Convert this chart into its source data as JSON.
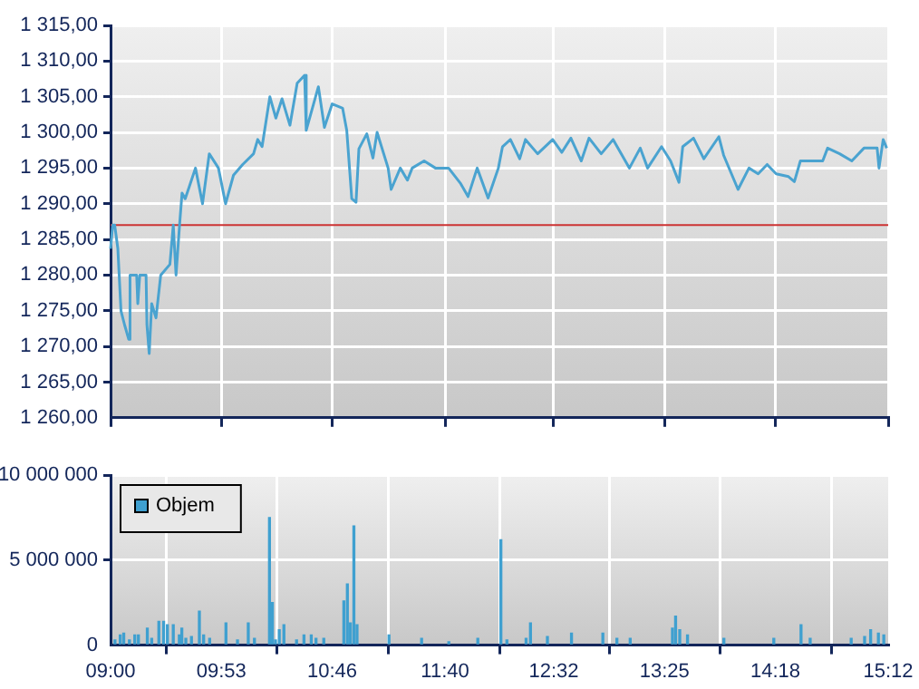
{
  "chart_data": [
    {
      "type": "line",
      "color": "#4aa3d0",
      "marker": "none",
      "grid": true,
      "tick_labels": "y",
      "x": [
        9.0,
        9.017,
        9.033,
        9.058,
        9.083,
        9.112,
        9.145,
        9.155,
        9.208,
        9.217,
        9.233,
        9.283,
        9.29,
        9.308,
        9.328,
        9.362,
        9.4,
        9.473,
        9.5,
        9.522,
        9.55,
        9.57,
        9.595,
        9.628,
        9.677,
        9.733,
        9.787,
        9.86,
        9.917,
        9.98,
        10.053,
        10.14,
        10.173,
        10.208,
        10.27,
        10.318,
        10.367,
        10.43,
        10.488,
        10.547,
        10.56,
        10.657,
        10.705,
        10.767,
        10.85,
        10.883,
        10.923,
        10.957,
        10.98,
        11.043,
        11.092,
        11.125,
        11.213,
        11.237,
        11.31,
        11.367,
        11.405,
        11.5,
        11.59,
        11.695,
        11.792,
        11.85,
        11.923,
        12.01,
        12.092,
        12.125,
        12.188,
        12.262,
        12.308,
        12.405,
        12.525,
        12.598,
        12.67,
        12.753,
        12.815,
        12.912,
        13.007,
        13.137,
        13.223,
        13.282,
        13.393,
        13.465,
        13.532,
        13.562,
        13.648,
        13.73,
        13.85,
        13.888,
        14.003,
        14.09,
        14.163,
        14.235,
        14.307,
        14.405,
        14.452,
        14.5,
        14.678,
        14.717,
        14.813,
        14.91,
        15.007,
        15.112,
        15.127,
        15.16,
        15.188
      ],
      "values": [
        1283.7,
        1287,
        1287,
        1283.7,
        1275,
        1273,
        1271,
        1280,
        1280,
        1276,
        1280,
        1280,
        1273,
        1269,
        1276,
        1274,
        1280,
        1281.5,
        1287,
        1280,
        1287,
        1291.5,
        1290.7,
        1292.4,
        1295,
        1290,
        1297,
        1295,
        1290,
        1294,
        1295.5,
        1297,
        1299,
        1298,
        1305,
        1302,
        1304.7,
        1301,
        1306.9,
        1308,
        1300.3,
        1306.4,
        1300.7,
        1304,
        1303.4,
        1300.3,
        1290.7,
        1290.2,
        1297.7,
        1299.8,
        1296.4,
        1300,
        1295,
        1292,
        1295,
        1293.3,
        1295,
        1296,
        1295,
        1295,
        1292.8,
        1291,
        1295,
        1290.8,
        1295,
        1298,
        1299,
        1296.3,
        1299,
        1297,
        1299,
        1297.2,
        1299.2,
        1296,
        1299.2,
        1297,
        1299,
        1295,
        1297.8,
        1295,
        1298,
        1296,
        1293,
        1298,
        1299.2,
        1296.3,
        1299.4,
        1296.8,
        1292,
        1295,
        1294.2,
        1295.5,
        1294.2,
        1293.8,
        1293.1,
        1296,
        1296,
        1297.8,
        1297,
        1296,
        1297.8,
        1297.8,
        1295,
        1299,
        1297.8
      ],
      "xlim": [
        9,
        15.2
      ],
      "xticks": [
        {
          "value": 9,
          "label": null
        },
        {
          "value": 9.8833,
          "label": null
        },
        {
          "value": 10.7667,
          "label": null
        },
        {
          "value": 11.6667,
          "label": null
        },
        {
          "value": 12.5333,
          "label": null
        },
        {
          "value": 13.4167,
          "label": null
        },
        {
          "value": 14.3,
          "label": null
        },
        {
          "value": 15.2,
          "label": null
        }
      ],
      "ylim": [
        1260,
        1315
      ],
      "yticks": [
        {
          "value": 1260,
          "label": "1 260,00"
        },
        {
          "value": 1265,
          "label": "1 265,00"
        },
        {
          "value": 1270,
          "label": "1 270,00"
        },
        {
          "value": 1275,
          "label": "1 275,00"
        },
        {
          "value": 1280,
          "label": "1 280,00"
        },
        {
          "value": 1285,
          "label": "1 285,00"
        },
        {
          "value": 1290,
          "label": "1 290,00"
        },
        {
          "value": 1295,
          "label": "1 295,00"
        },
        {
          "value": 1300,
          "label": "1 300,00"
        },
        {
          "value": 1305,
          "label": "1 305,00"
        },
        {
          "value": 1310,
          "label": "1 310,00"
        },
        {
          "value": 1315,
          "label": "1 315,00"
        }
      ],
      "ref_lines": [
        {
          "axis": "y",
          "value": 1287,
          "color": "#cc3333"
        }
      ]
    },
    {
      "type": "bar",
      "grid": true,
      "legend": "top left",
      "series": [
        {
          "name": "Objem",
          "color": "#3fa0d0",
          "x": [
            9.035,
            9.077,
            9.105,
            9.15,
            9.193,
            9.222,
            9.293,
            9.328,
            9.385,
            9.423,
            9.453,
            9.5,
            9.548,
            9.568,
            9.6,
            9.645,
            9.708,
            9.742,
            9.79,
            9.92,
            10.012,
            10.098,
            10.147,
            10.267,
            10.29,
            10.315,
            10.345,
            10.382,
            10.483,
            10.542,
            10.6,
            10.638,
            10.7,
            10.86,
            10.888,
            10.912,
            10.94,
            10.965,
            11.22,
            11.48,
            11.697,
            11.928,
            12.112,
            12.16,
            12.313,
            12.348,
            12.483,
            12.675,
            12.925,
            13.037,
            13.143,
            13.48,
            13.505,
            13.538,
            13.6,
            13.89,
            14.288,
            14.505,
            14.578,
            14.905,
            15.012,
            15.06,
            15.122,
            15.165
          ],
          "values": [
            300000,
            600000,
            700000,
            300000,
            600000,
            600000,
            1000000,
            400000,
            1400000,
            1400000,
            1200000,
            1200000,
            600000,
            1000000,
            400000,
            500000,
            2000000,
            600000,
            400000,
            1300000,
            300000,
            1300000,
            400000,
            7500000,
            2500000,
            300000,
            900000,
            1200000,
            300000,
            600000,
            600000,
            400000,
            400000,
            2600000,
            3600000,
            1300000,
            7000000,
            1200000,
            600000,
            400000,
            200000,
            400000,
            6200000,
            300000,
            400000,
            1300000,
            500000,
            700000,
            700000,
            400000,
            400000,
            1000000,
            1700000,
            900000,
            600000,
            400000,
            400000,
            1200000,
            400000,
            400000,
            500000,
            900000,
            700000,
            600000
          ]
        }
      ],
      "xlim": [
        9,
        15.2
      ],
      "xticks": [
        {
          "value": 9,
          "label": "09:00"
        },
        {
          "value": 9.8833,
          "label": "09:53"
        },
        {
          "value": 10.7667,
          "label": "10:46"
        },
        {
          "value": 11.6667,
          "label": "11:40"
        },
        {
          "value": 12.5333,
          "label": "12:32"
        },
        {
          "value": 13.4167,
          "label": "13:25"
        },
        {
          "value": 14.3,
          "label": "14:18"
        },
        {
          "value": 15.2,
          "label": "15:12"
        }
      ],
      "ylim": [
        0,
        10000000
      ],
      "yticks": [
        0,
        {
          "value": 5000000,
          "label": "5 000 000"
        },
        {
          "value": 10000000,
          "label": "10 000 000"
        }
      ]
    }
  ]
}
